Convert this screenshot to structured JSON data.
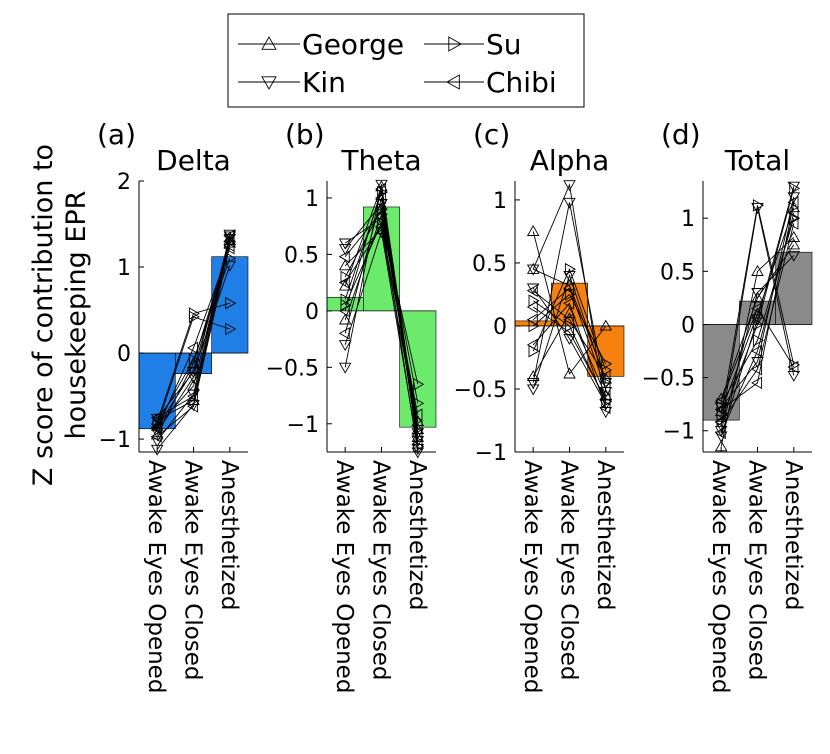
{
  "chart_data": {
    "type": "bar",
    "ylabel": "Z score of contribution to housekeeping EPR",
    "categories": [
      "Awake Eyes Opened",
      "Awake Eyes Closed",
      "Anesthetized"
    ],
    "legend": [
      {
        "name": "George",
        "marker": "triangle-up"
      },
      {
        "name": "Su",
        "marker": "triangle-right"
      },
      {
        "name": "Kin",
        "marker": "triangle-down"
      },
      {
        "name": "Chibi",
        "marker": "triangle-left"
      }
    ],
    "panels": [
      {
        "letter": "(a)",
        "title": "Delta",
        "color": "#1f7fe6",
        "ylim": [
          -1.15,
          2.0
        ],
        "yticks": [
          -1,
          0,
          1,
          2
        ],
        "bars": [
          -0.88,
          -0.24,
          1.12
        ],
        "subjects": [
          {
            "marker": "triangle-up",
            "values": [
              -0.95,
              -0.12,
              1.28
            ]
          },
          {
            "marker": "triangle-up",
            "values": [
              -0.85,
              -0.38,
              1.34
            ]
          },
          {
            "marker": "triangle-up",
            "values": [
              -0.78,
              -0.55,
              1.31
            ]
          },
          {
            "marker": "triangle-right",
            "values": [
              -0.8,
              0.46,
              0.58
            ]
          },
          {
            "marker": "triangle-right",
            "values": [
              -0.84,
              0.42,
              0.28
            ]
          },
          {
            "marker": "triangle-right",
            "values": [
              -0.82,
              -0.08,
              1.1
            ]
          },
          {
            "marker": "triangle-down",
            "values": [
              -1.12,
              -0.6,
              1.33
            ]
          },
          {
            "marker": "triangle-down",
            "values": [
              -1.02,
              -0.48,
              1.38
            ]
          },
          {
            "marker": "triangle-down",
            "values": [
              -0.92,
              -0.28,
              1.36
            ]
          },
          {
            "marker": "triangle-down",
            "values": [
              -0.76,
              -0.22,
              1.02
            ]
          },
          {
            "marker": "triangle-left",
            "values": [
              -0.75,
              -0.5,
              1.36
            ]
          },
          {
            "marker": "triangle-left",
            "values": [
              -0.86,
              -0.2,
              1.3
            ]
          },
          {
            "marker": "triangle-left",
            "values": [
              -0.97,
              -0.62,
              1.25
            ]
          },
          {
            "marker": "triangle-left",
            "values": [
              -0.88,
              0.06,
              1.22
            ]
          }
        ]
      },
      {
        "letter": "(b)",
        "title": "Theta",
        "color": "#6cea6c",
        "ylim": [
          -1.25,
          1.15
        ],
        "yticks": [
          -1,
          -0.5,
          0,
          0.5,
          1
        ],
        "bars": [
          0.12,
          0.92,
          -1.03
        ],
        "subjects": [
          {
            "marker": "triangle-up",
            "values": [
              0.22,
              1.1,
              -1.12
            ]
          },
          {
            "marker": "triangle-up",
            "values": [
              0.4,
              0.72,
              -1.05
            ]
          },
          {
            "marker": "triangle-up",
            "values": [
              -0.08,
              0.85,
              -0.98
            ]
          },
          {
            "marker": "triangle-right",
            "values": [
              0.05,
              0.78,
              -0.65
            ]
          },
          {
            "marker": "triangle-right",
            "values": [
              0.3,
              0.9,
              -0.82
            ]
          },
          {
            "marker": "triangle-right",
            "values": [
              0.1,
              1.05,
              -1.2
            ]
          },
          {
            "marker": "triangle-down",
            "values": [
              0.6,
              0.82,
              -1.25
            ]
          },
          {
            "marker": "triangle-down",
            "values": [
              0.55,
              0.95,
              -1.15
            ]
          },
          {
            "marker": "triangle-down",
            "values": [
              -0.5,
              1.12,
              -1.08
            ]
          },
          {
            "marker": "triangle-down",
            "values": [
              -0.3,
              0.7,
              -1.22
            ]
          },
          {
            "marker": "triangle-left",
            "values": [
              0.48,
              0.88,
              -1.02
            ]
          },
          {
            "marker": "triangle-left",
            "values": [
              -0.2,
              1.0,
              -1.18
            ]
          },
          {
            "marker": "triangle-left",
            "values": [
              0.25,
              0.75,
              -0.92
            ]
          },
          {
            "marker": "triangle-left",
            "values": [
              0.0,
              1.08,
              -1.1
            ]
          }
        ]
      },
      {
        "letter": "(c)",
        "title": "Alpha",
        "color": "#f5820f",
        "ylim": [
          -1.0,
          1.15
        ],
        "yticks": [
          -1,
          -0.5,
          0,
          0.5,
          1
        ],
        "bars": [
          0.04,
          0.34,
          -0.4
        ],
        "subjects": [
          {
            "marker": "triangle-up",
            "values": [
              0.75,
              -0.38,
              0.0
            ]
          },
          {
            "marker": "triangle-up",
            "values": [
              0.45,
              0.32,
              -0.42
            ]
          },
          {
            "marker": "triangle-up",
            "values": [
              -0.4,
              0.1,
              -0.55
            ]
          },
          {
            "marker": "triangle-right",
            "values": [
              0.0,
              0.25,
              -0.3
            ]
          },
          {
            "marker": "triangle-right",
            "values": [
              0.2,
              0.0,
              -0.6
            ]
          },
          {
            "marker": "triangle-right",
            "values": [
              -0.2,
              0.45,
              -0.35
            ]
          },
          {
            "marker": "triangle-down",
            "values": [
              0.45,
              1.12,
              -0.68
            ]
          },
          {
            "marker": "triangle-down",
            "values": [
              -0.45,
              0.98,
              -0.52
            ]
          },
          {
            "marker": "triangle-down",
            "values": [
              -0.5,
              0.4,
              -0.45
            ]
          },
          {
            "marker": "triangle-down",
            "values": [
              0.3,
              -0.1,
              -0.62
            ]
          },
          {
            "marker": "triangle-left",
            "values": [
              0.28,
              0.05,
              -0.4
            ]
          },
          {
            "marker": "triangle-left",
            "values": [
              0.05,
              0.3,
              -0.5
            ]
          },
          {
            "marker": "triangle-left",
            "values": [
              -0.15,
              0.18,
              -0.65
            ]
          },
          {
            "marker": "triangle-left",
            "values": [
              0.15,
              -0.05,
              -0.58
            ]
          }
        ]
      },
      {
        "letter": "(d)",
        "title": "Total",
        "color": "#8a8a8a",
        "ylim": [
          -1.2,
          1.35
        ],
        "yticks": [
          -1,
          -0.5,
          0,
          0.5,
          1
        ],
        "bars": [
          -0.9,
          0.22,
          0.68
        ],
        "subjects": [
          {
            "marker": "triangle-up",
            "values": [
              -1.15,
              0.5,
              0.82
            ]
          },
          {
            "marker": "triangle-up",
            "values": [
              -0.82,
              0.1,
              1.1
            ]
          },
          {
            "marker": "triangle-up",
            "values": [
              -0.7,
              0.25,
              0.75
            ]
          },
          {
            "marker": "triangle-right",
            "values": [
              -0.85,
              1.12,
              -0.38
            ]
          },
          {
            "marker": "triangle-right",
            "values": [
              -0.9,
              0.0,
              1.28
            ]
          },
          {
            "marker": "triangle-right",
            "values": [
              -0.75,
              -0.15,
              1.0
            ]
          },
          {
            "marker": "triangle-down",
            "values": [
              -0.95,
              1.1,
              -0.48
            ]
          },
          {
            "marker": "triangle-down",
            "values": [
              -1.05,
              0.05,
              1.3
            ]
          },
          {
            "marker": "triangle-down",
            "values": [
              -0.78,
              -0.35,
              1.2
            ]
          },
          {
            "marker": "triangle-down",
            "values": [
              -1.0,
              0.3,
              0.65
            ]
          },
          {
            "marker": "triangle-left",
            "values": [
              -0.8,
              -0.55,
              1.15
            ]
          },
          {
            "marker": "triangle-left",
            "values": [
              -0.92,
              -0.42,
              0.95
            ]
          },
          {
            "marker": "triangle-left",
            "values": [
              -0.72,
              0.15,
              -0.4
            ]
          },
          {
            "marker": "triangle-left",
            "values": [
              -1.02,
              -0.25,
              1.05
            ]
          }
        ]
      }
    ]
  }
}
